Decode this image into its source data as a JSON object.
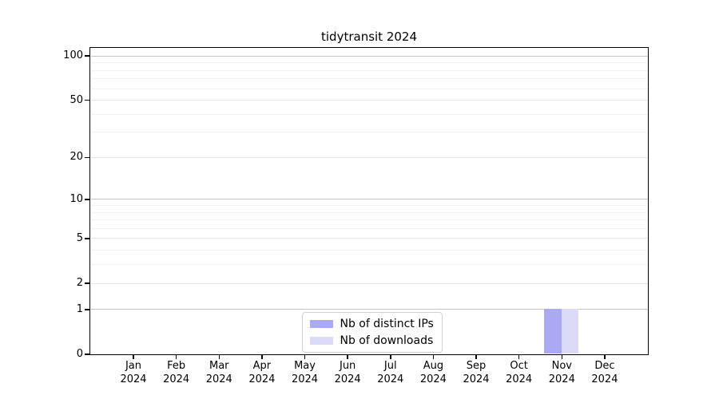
{
  "chart_data": {
    "type": "bar",
    "title": "tidytransit 2024",
    "categories": [
      "Jan 2024",
      "Feb 2024",
      "Mar 2024",
      "Apr 2024",
      "May 2024",
      "Jun 2024",
      "Jul 2024",
      "Aug 2024",
      "Sep 2024",
      "Oct 2024",
      "Nov 2024",
      "Dec 2024"
    ],
    "series": [
      {
        "name": "Nb of distinct IPs",
        "color": "#aaaaf2",
        "values": [
          0,
          0,
          0,
          0,
          0,
          0,
          0,
          0,
          0,
          0,
          1,
          0
        ]
      },
      {
        "name": "Nb of downloads",
        "color": "#dbdbf8",
        "values": [
          0,
          0,
          0,
          0,
          0,
          0,
          0,
          0,
          0,
          0,
          1,
          0
        ]
      }
    ],
    "xlabel": "",
    "ylabel": "",
    "y_axis": {
      "scale": "log1p",
      "tick_values": [
        0,
        1,
        2,
        5,
        10,
        20,
        50,
        100
      ],
      "tick_labels": [
        "0",
        "1",
        "2",
        "5",
        "10",
        "20",
        "50",
        "100"
      ],
      "decade_gridline_values": [
        1,
        10,
        100
      ],
      "minor_gridline_values": [
        3,
        4,
        6,
        7,
        8,
        9,
        30,
        40,
        60,
        70,
        80,
        90
      ],
      "axis_top_value": 113.5,
      "ylim_bottom": 0
    },
    "grid": true,
    "legend_position": "bottom-center-inside"
  }
}
